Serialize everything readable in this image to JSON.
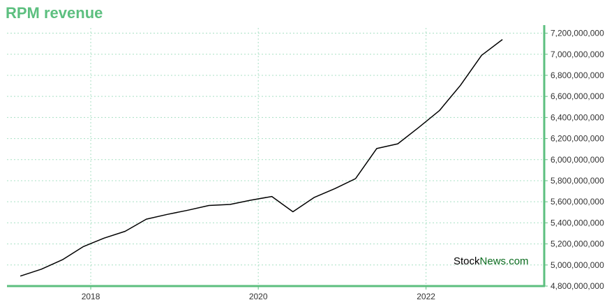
{
  "colors": {
    "accent": "#5cbf7f",
    "line": "#000000",
    "grid": "#a8e0c4",
    "brand_stock": "#000000",
    "brand_news": "#0a6b1e"
  },
  "watermark": {
    "stock": "Stock",
    "news": "News",
    "dotcom": ".com"
  },
  "chart_data": {
    "type": "line",
    "title": "RPM revenue",
    "xlabel": "",
    "ylabel": "",
    "grid": true,
    "y_axis_side": "right",
    "ylim": [
      4800000000,
      7250000000
    ],
    "yticks": [
      4800000000,
      5000000000,
      5200000000,
      5400000000,
      5600000000,
      5800000000,
      6000000000,
      6200000000,
      6400000000,
      6600000000,
      6800000000,
      7000000000,
      7200000000
    ],
    "ytick_labels": [
      "4,800,000,000",
      "5,000,000,000",
      "5,200,000,000",
      "5,400,000,000",
      "5,600,000,000",
      "5,800,000,000",
      "6,000,000,000",
      "6,200,000,000",
      "6,400,000,000",
      "6,600,000,000",
      "6,800,000,000",
      "7,000,000,000",
      "7,200,000,000"
    ],
    "xlim": [
      "2017-01-01",
      "2023-05-31"
    ],
    "xticks": [
      "2018-01-01",
      "2020-01-01",
      "2022-01-01"
    ],
    "xtick_labels": [
      "2018",
      "2020",
      "2022"
    ],
    "x": [
      "2017-02-28",
      "2017-05-31",
      "2017-08-31",
      "2017-11-30",
      "2018-02-28",
      "2018-05-31",
      "2018-08-31",
      "2018-11-30",
      "2019-02-28",
      "2019-05-31",
      "2019-08-31",
      "2019-11-30",
      "2020-02-29",
      "2020-05-31",
      "2020-08-31",
      "2020-11-30",
      "2021-02-28",
      "2021-05-31",
      "2021-08-31",
      "2021-11-30",
      "2022-02-28",
      "2022-05-31",
      "2022-08-31",
      "2022-11-30"
    ],
    "series": [
      {
        "values": [
          4895000000,
          4960000000,
          5050000000,
          5175000000,
          5255000000,
          5320000000,
          5435000000,
          5480000000,
          5520000000,
          5565000000,
          5575000000,
          5615000000,
          5650000000,
          5505000000,
          5640000000,
          5725000000,
          5820000000,
          6105000000,
          6150000000,
          6305000000,
          6465000000,
          6705000000,
          6990000000,
          7140000000
        ]
      }
    ]
  }
}
